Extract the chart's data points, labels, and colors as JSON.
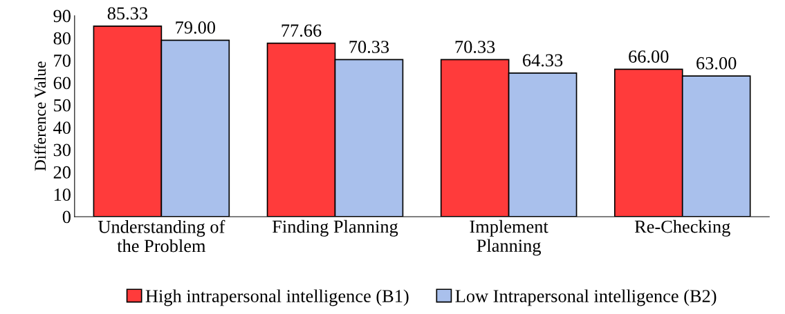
{
  "chart_data": {
    "type": "bar",
    "ylabel": "Difference Value",
    "categories": [
      "Understanding of\nthe Problem",
      "Finding Planning",
      "Implement\nPlanning",
      "Re-Checking"
    ],
    "series": [
      {
        "name": "High intrapersonal intelligence (B1)",
        "color": "#ff3b3b",
        "values": [
          85.33,
          77.66,
          70.33,
          66.0
        ],
        "value_labels": [
          "85.33",
          "77.66",
          "70.33",
          "66.00"
        ]
      },
      {
        "name": "Low Intrapersonal intelligence (B2)",
        "color": "#a9c0ec",
        "values": [
          79.0,
          70.33,
          64.33,
          63.0
        ],
        "value_labels": [
          "79.00",
          "70.33",
          "64.33",
          "63.00"
        ]
      }
    ],
    "ylim": [
      0,
      90
    ],
    "yticks": [
      0,
      10,
      20,
      30,
      40,
      50,
      60,
      70,
      80,
      90
    ],
    "grid": false,
    "legend": "bottom"
  }
}
